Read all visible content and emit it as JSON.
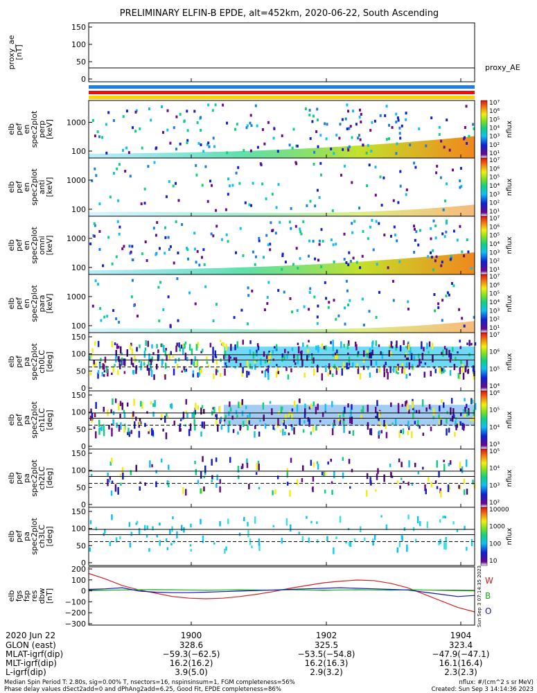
{
  "title": "PRELIMINARY ELFIN-B EPDE, alt=452km, 2020-06-22, South Ascending",
  "colors": {
    "bar_blue": "#1a7fe0",
    "bar_red": "#e81010",
    "bar_yellow": "#ffd200",
    "line_red": "#d02020",
    "line_green": "#10b010",
    "line_blue": "#1010c0"
  },
  "chart_data": [
    {
      "id": "proxy_ae",
      "type": "line",
      "ylabel": "proxy_ae\n[nT]",
      "yticks": [
        "150",
        "100",
        "50",
        "0"
      ],
      "ylim": [
        -10,
        160
      ],
      "reference_line_y": 30,
      "series": [
        {
          "name": "proxy_AE",
          "values": []
        }
      ]
    },
    {
      "id": "pef_en_perp",
      "type": "heatmap",
      "ylabel": "elb\npef\nen\nspec2plot\nperp\n[keV]",
      "yticks": [
        "1000",
        "100"
      ],
      "colorbar": {
        "label": "nflux",
        "ticks": [
          "10⁷",
          "10⁶",
          "10⁵",
          "10⁴",
          "10³",
          "10²",
          "10¹"
        ]
      }
    },
    {
      "id": "pef_en_anti",
      "type": "heatmap",
      "ylabel": "elb\npef\nen\nspec2plot\nanti\n[keV]",
      "yticks": [
        "1000",
        "100"
      ],
      "colorbar": {
        "label": "nflux",
        "ticks": [
          "10⁷",
          "10⁶",
          "10⁵",
          "10⁴",
          "10³",
          "10²",
          "10¹"
        ]
      }
    },
    {
      "id": "pef_en_omni",
      "type": "heatmap",
      "ylabel": "elb\npef\nen\nspec2plot\nomni\n[keV]",
      "yticks": [
        "1000",
        "100"
      ],
      "colorbar": {
        "label": "nflux",
        "ticks": [
          "10⁷",
          "10⁶",
          "10⁵",
          "10⁴",
          "10³",
          "10²",
          "10¹"
        ]
      }
    },
    {
      "id": "pef_en_para",
      "type": "heatmap",
      "ylabel": "elb\npef\nen\nspec2plot\npara\n[keV]",
      "yticks": [
        "1000",
        "100"
      ],
      "colorbar": {
        "label": "nflux",
        "ticks": [
          "10⁷",
          "10⁶",
          "10⁵",
          "10⁴",
          "10³",
          "10²",
          "10¹"
        ]
      }
    },
    {
      "id": "pef_pa_ch0",
      "type": "heatmap",
      "ylabel": "elb\npef\npa\nspec2plot\nch0LC\n[deg]",
      "yticks": [
        "150",
        "100",
        "50",
        "0"
      ],
      "colorbar": {
        "label": "nflux",
        "ticks": [
          "10⁷",
          "10⁶",
          "10⁵",
          "10⁴"
        ]
      }
    },
    {
      "id": "pef_pa_ch1",
      "type": "heatmap",
      "ylabel": "elb\npef\npa\nspec2plot\nch1LC\n[deg]",
      "yticks": [
        "150",
        "100",
        "50",
        "0"
      ],
      "colorbar": {
        "label": "nflux",
        "ticks": [
          "10⁶",
          "10⁵",
          "10⁴",
          "10³"
        ]
      }
    },
    {
      "id": "pef_pa_ch2",
      "type": "heatmap",
      "ylabel": "elb\npef\npa\nspec2plot\nch2LC\n[deg]",
      "yticks": [
        "150",
        "100",
        "50",
        "0"
      ],
      "colorbar": {
        "label": "nflux",
        "ticks": [
          "10⁵",
          "10⁴",
          "10³",
          "10²"
        ]
      }
    },
    {
      "id": "pef_pa_ch3",
      "type": "heatmap",
      "ylabel": "elb\npef\npa\nspec2plot\nch3LC\n[deg]",
      "yticks": [
        "150",
        "100",
        "50",
        "0"
      ],
      "colorbar": {
        "label": "nflux",
        "ticks": [
          "10000",
          "1000",
          "100",
          "10"
        ]
      }
    },
    {
      "id": "fgs_res_dbw",
      "type": "line",
      "ylabel": "elb\nfgs\nfsp\nres\ndbw\n[nT]",
      "yticks": [
        "200",
        "100",
        "0",
        "−100",
        "−200",
        "−300"
      ],
      "ylim": [
        -320,
        210
      ],
      "legend": [
        "W",
        "B",
        "O"
      ],
      "series": [
        {
          "name": "W",
          "values": [
            150,
            100,
            40,
            0,
            -30,
            -60,
            -75,
            -80,
            -75,
            -60,
            -40,
            -15,
            15,
            40,
            65,
            80,
            90,
            85,
            60,
            20,
            -40,
            -100,
            -160,
            -200
          ]
        },
        {
          "name": "B",
          "values": [
            -5,
            -2,
            0,
            2,
            3,
            2,
            0,
            -2,
            0,
            2,
            0,
            -2,
            2,
            0,
            -3,
            0,
            2,
            0,
            -2,
            2,
            0,
            -3,
            -6,
            -8
          ]
        },
        {
          "name": "O",
          "values": [
            5,
            10,
            20,
            -10,
            -20,
            -25,
            -25,
            -20,
            -15,
            -10,
            -5,
            0,
            5,
            10,
            15,
            20,
            15,
            10,
            5,
            0,
            -20,
            -40,
            -60,
            -50
          ]
        }
      ]
    }
  ],
  "time_axis": {
    "date": "2020 Jun 22",
    "ticks": [
      "1900",
      "1902",
      "1904"
    ]
  },
  "ephemeris": {
    "rows": [
      {
        "label": "GLON (east)",
        "values": [
          "328.6",
          "325.5",
          "323.4"
        ]
      },
      {
        "label": "MLAT-igrf(dip)",
        "values": [
          "−59.3(−62.5)",
          "−53.5(−54.8)",
          "−47.9(−47.1)"
        ]
      },
      {
        "label": "MLT-igrf(dip)",
        "values": [
          "16.2(16.2)",
          "16.2(16.3)",
          "16.1(16.4)"
        ]
      },
      {
        "label": "L-igrf(dip)",
        "values": [
          "3.9(5.0)",
          "2.9(3.2)",
          "2.3(2.3)"
        ]
      }
    ]
  },
  "footer": {
    "line1_left": "Median Spin Period T: 2.80s, sig=0.00% T, nsectors=16, nspinsinsum=1, FGM completeness=56%",
    "line2_left": "Phase delay values dSect2add=0 and dPhAng2add=6.25, Good Fit, EPDE completeness=86%",
    "line1_right": "nflux: #/(cm^2 s sr MeV)",
    "line2_right": "Created: Sun Sep  3 14:14:36 2023",
    "vertical_stamp": "Sun Sep  3 07:14:35 2023"
  }
}
